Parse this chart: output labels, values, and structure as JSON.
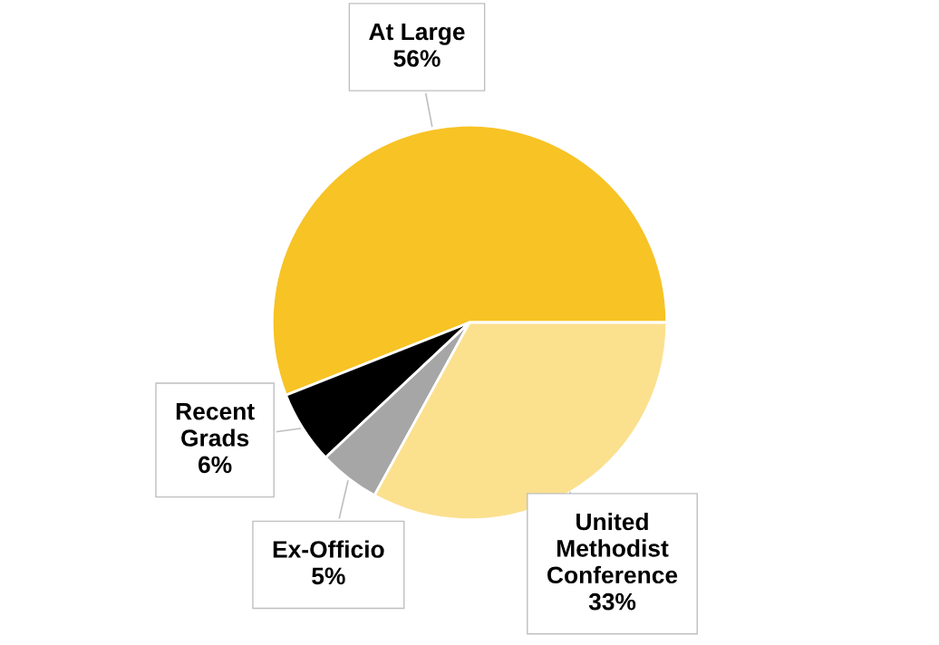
{
  "chart_data": {
    "type": "pie",
    "categories": [
      "At Large",
      "Recent\nGrads",
      "Ex-Officio",
      "United\nMethodist\nConference"
    ],
    "values": [
      56,
      6,
      5,
      33
    ],
    "colors": [
      "#f7c325",
      "#000000",
      "#a6a6a6",
      "#fbe08e"
    ],
    "value_labels": [
      "56%",
      "6%",
      "5%",
      "33%"
    ],
    "legend": false
  }
}
